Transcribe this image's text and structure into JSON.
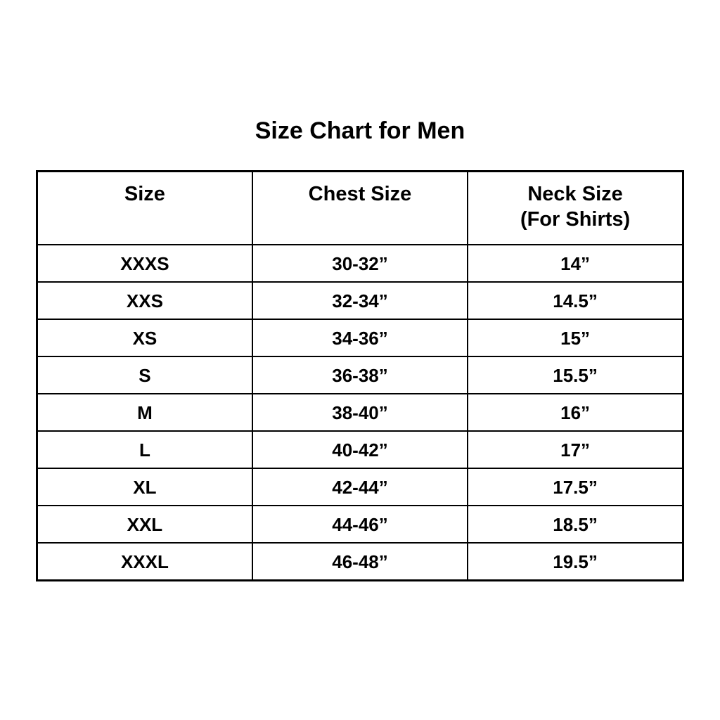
{
  "page": {
    "title": "Size Chart for Men",
    "background_color": "#ffffff",
    "text_color": "#000000",
    "border_color": "#000000"
  },
  "chart_data": {
    "type": "table",
    "title": "Size Chart for Men",
    "columns": [
      "Size",
      "Chest Size",
      "Neck Size (For Shirts)"
    ],
    "rows": [
      [
        "XXXS",
        "30-32”",
        "14”"
      ],
      [
        "XXS",
        "32-34”",
        "14.5”"
      ],
      [
        "XS",
        "34-36”",
        "15”"
      ],
      [
        "S",
        "36-38”",
        "15.5”"
      ],
      [
        "M",
        "38-40”",
        "16”"
      ],
      [
        "L",
        "40-42”",
        "17”"
      ],
      [
        "XL",
        "42-44”",
        "17.5”"
      ],
      [
        "XXL",
        "44-46”",
        "18.5”"
      ],
      [
        "XXXL",
        "46-48”",
        "19.5”"
      ]
    ],
    "layout": {
      "grid": true,
      "header_rows": 1,
      "text_alignment": "center"
    }
  },
  "table": {
    "headers": {
      "size": "Size",
      "chest": "Chest Size",
      "neck_line1": "Neck Size",
      "neck_line2": "(For Shirts)"
    },
    "rows": [
      {
        "size": "XXXS",
        "chest": "30-32”",
        "neck": "14”"
      },
      {
        "size": "XXS",
        "chest": "32-34”",
        "neck": "14.5”"
      },
      {
        "size": "XS",
        "chest": "34-36”",
        "neck": "15”"
      },
      {
        "size": "S",
        "chest": "36-38”",
        "neck": "15.5”"
      },
      {
        "size": "M",
        "chest": "38-40”",
        "neck": "16”"
      },
      {
        "size": "L",
        "chest": "40-42”",
        "neck": "17”"
      },
      {
        "size": "XL",
        "chest": "42-44”",
        "neck": "17.5”"
      },
      {
        "size": "XXL",
        "chest": "44-46”",
        "neck": "18.5”"
      },
      {
        "size": "XXXL",
        "chest": "46-48”",
        "neck": "19.5”"
      }
    ]
  }
}
